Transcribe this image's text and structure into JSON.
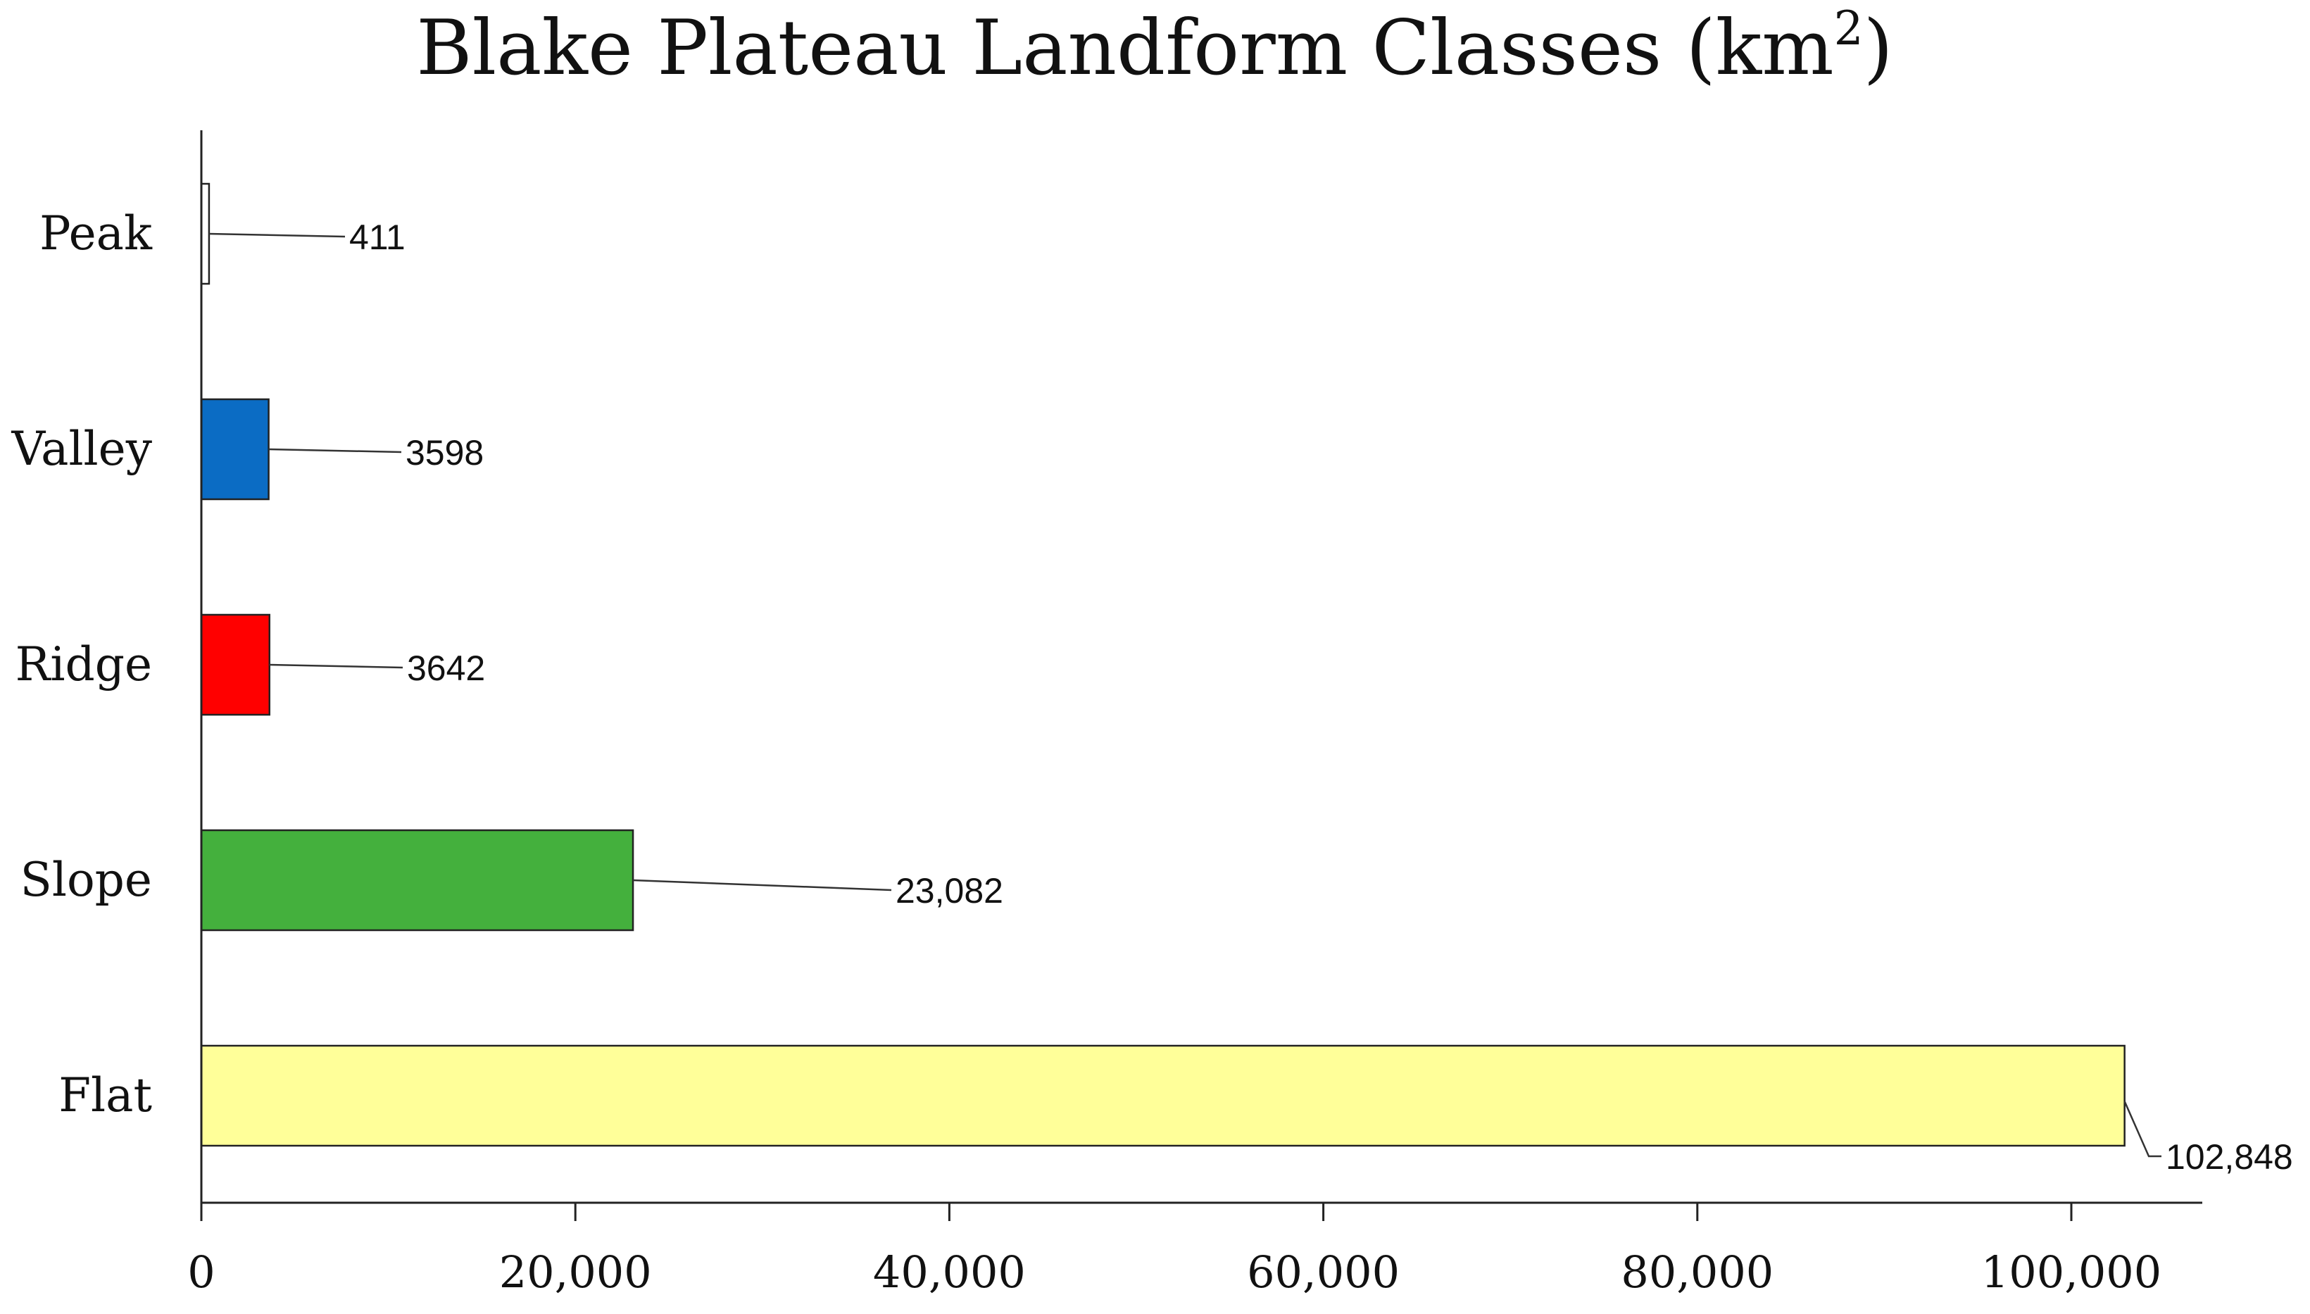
{
  "chart_data": {
    "type": "bar",
    "orientation": "horizontal",
    "title": "Blake Plateau Landform Classes (km",
    "title_superscript": "2",
    "title_close": ")",
    "categories": [
      "Peak",
      "Valley",
      "Ridge",
      "Slope",
      "Flat"
    ],
    "values": [
      411,
      3598,
      3642,
      23082,
      102848
    ],
    "value_labels": [
      "411",
      "3598",
      "3642",
      "23,082",
      "102,848"
    ],
    "colors": [
      "#ffffff",
      "#0b6cc4",
      "#ff0000",
      "#44b03d",
      "#ffff99"
    ],
    "x_ticks": [
      0,
      20000,
      40000,
      60000,
      80000,
      100000
    ],
    "x_tick_labels": [
      "0",
      "20,000",
      "40,000",
      "60,000",
      "80,000",
      "100,000"
    ],
    "xlim": [
      0,
      110000
    ],
    "xlabel": "",
    "ylabel": "",
    "grid": false,
    "legend": "none"
  }
}
